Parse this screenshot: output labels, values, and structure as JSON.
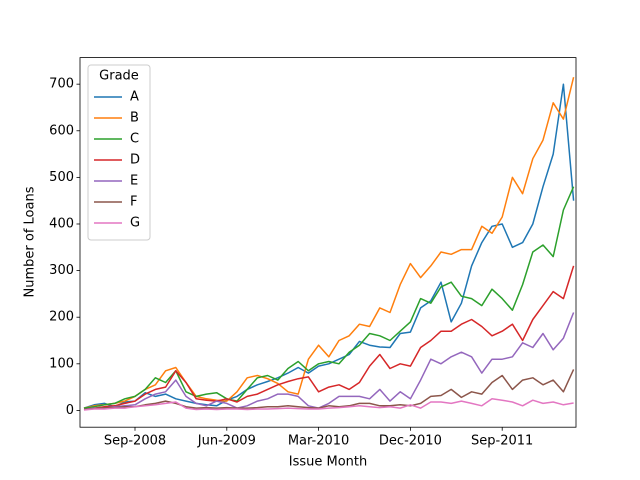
{
  "chart_data": {
    "type": "line",
    "xlabel": "Issue Month",
    "ylabel": "Number of Loans",
    "legend_title": "Grade",
    "legend": "upper left",
    "x": [
      "2008-04",
      "2008-05",
      "2008-06",
      "2008-07",
      "2008-08",
      "2008-09",
      "2008-10",
      "2008-11",
      "2008-12",
      "2009-01",
      "2009-02",
      "2009-03",
      "2009-04",
      "2009-05",
      "2009-06",
      "2009-07",
      "2009-08",
      "2009-09",
      "2009-10",
      "2009-11",
      "2009-12",
      "2010-01",
      "2010-02",
      "2010-03",
      "2010-04",
      "2010-05",
      "2010-06",
      "2010-07",
      "2010-08",
      "2010-09",
      "2010-10",
      "2010-11",
      "2010-12",
      "2011-01",
      "2011-02",
      "2011-03",
      "2011-04",
      "2011-05",
      "2011-06",
      "2011-07",
      "2011-08",
      "2011-09",
      "2011-10",
      "2011-11",
      "2011-12",
      "2012-01",
      "2012-02",
      "2012-03",
      "2012-04"
    ],
    "xticks": [
      {
        "value": "2008-09",
        "label": "Sep-2008"
      },
      {
        "value": "2009-06",
        "label": "Jun-2009"
      },
      {
        "value": "2010-03",
        "label": "Mar-2010"
      },
      {
        "value": "2010-12",
        "label": "Dec-2010"
      },
      {
        "value": "2011-09",
        "label": "Sep-2011"
      }
    ],
    "ylim": [
      -36,
      757
    ],
    "yticks": [
      0,
      100,
      200,
      300,
      400,
      500,
      600,
      700
    ],
    "series": [
      {
        "name": "A",
        "color": "#1f77b4",
        "values": [
          5,
          12,
          15,
          8,
          18,
          20,
          38,
          30,
          35,
          25,
          20,
          15,
          12,
          10,
          22,
          30,
          45,
          55,
          62,
          70,
          80,
          92,
          80,
          95,
          100,
          110,
          120,
          148,
          140,
          136,
          135,
          165,
          168,
          220,
          235,
          275,
          190,
          230,
          310,
          360,
          395,
          400,
          350,
          360,
          400,
          480,
          550,
          700,
          450
        ]
      },
      {
        "name": "B",
        "color": "#ff7f0e",
        "values": [
          5,
          10,
          12,
          15,
          20,
          30,
          45,
          55,
          85,
          92,
          60,
          30,
          25,
          22,
          20,
          40,
          70,
          75,
          68,
          58,
          40,
          35,
          110,
          140,
          115,
          150,
          160,
          185,
          180,
          220,
          210,
          270,
          315,
          285,
          310,
          340,
          335,
          345,
          345,
          395,
          380,
          415,
          500,
          465,
          540,
          580,
          660,
          625,
          715
        ]
      },
      {
        "name": "C",
        "color": "#2ca02c",
        "values": [
          5,
          8,
          12,
          15,
          25,
          30,
          45,
          70,
          60,
          85,
          40,
          30,
          35,
          38,
          25,
          20,
          45,
          70,
          75,
          65,
          90,
          105,
          85,
          100,
          105,
          100,
          125,
          140,
          165,
          160,
          150,
          170,
          190,
          240,
          230,
          265,
          275,
          245,
          240,
          225,
          260,
          240,
          215,
          270,
          340,
          355,
          330,
          430,
          480
        ]
      },
      {
        "name": "D",
        "color": "#d62728",
        "values": [
          2,
          5,
          8,
          10,
          15,
          20,
          35,
          45,
          50,
          85,
          60,
          25,
          22,
          20,
          25,
          18,
          30,
          35,
          45,
          55,
          62,
          68,
          72,
          40,
          50,
          55,
          45,
          60,
          95,
          120,
          90,
          100,
          95,
          135,
          150,
          170,
          170,
          185,
          195,
          180,
          160,
          170,
          185,
          150,
          195,
          225,
          255,
          240,
          310
        ]
      },
      {
        "name": "E",
        "color": "#9467bd",
        "values": [
          2,
          5,
          5,
          8,
          10,
          12,
          25,
          35,
          40,
          65,
          30,
          15,
          10,
          20,
          15,
          5,
          10,
          20,
          25,
          35,
          35,
          30,
          10,
          5,
          15,
          30,
          30,
          30,
          25,
          45,
          20,
          40,
          25,
          65,
          110,
          100,
          115,
          125,
          115,
          80,
          110,
          110,
          115,
          145,
          135,
          165,
          130,
          155,
          210
        ]
      },
      {
        "name": "F",
        "color": "#8c564b",
        "values": [
          2,
          4,
          6,
          6,
          8,
          8,
          12,
          15,
          20,
          15,
          8,
          5,
          6,
          5,
          6,
          5,
          5,
          6,
          8,
          8,
          10,
          8,
          6,
          5,
          10,
          8,
          10,
          15,
          15,
          10,
          10,
          12,
          10,
          15,
          30,
          32,
          45,
          28,
          40,
          35,
          60,
          75,
          45,
          65,
          70,
          55,
          65,
          40,
          88
        ]
      },
      {
        "name": "G",
        "color": "#e377c2",
        "values": [
          1,
          3,
          3,
          5,
          5,
          8,
          10,
          12,
          15,
          18,
          5,
          2,
          3,
          2,
          3,
          3,
          2,
          3,
          3,
          4,
          5,
          4,
          3,
          3,
          5,
          6,
          8,
          10,
          8,
          6,
          8,
          5,
          12,
          5,
          18,
          18,
          15,
          20,
          15,
          10,
          25,
          22,
          18,
          10,
          22,
          15,
          18,
          12,
          16
        ]
      }
    ]
  }
}
